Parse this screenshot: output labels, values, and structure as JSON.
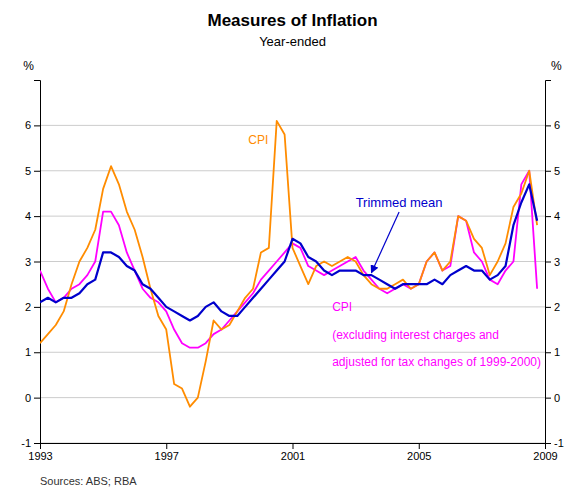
{
  "chart_data": {
    "type": "line",
    "title": "Measures of Inflation",
    "subtitle": "Year-ended",
    "y_label": "%",
    "y2_label": "%",
    "source": "Sources: ABS; RBA",
    "grid": true,
    "xlim": [
      1993.0,
      2009.0
    ],
    "xticks": [
      1993,
      1997,
      2001,
      2005,
      2009
    ],
    "ylim": [
      -1,
      7
    ],
    "yticks": [
      -1,
      0,
      1,
      2,
      3,
      4,
      5,
      6
    ],
    "y2lim": [
      -1,
      7
    ],
    "y2ticks": [
      -1,
      0,
      1,
      2,
      3,
      4,
      5,
      6
    ],
    "x": [
      1993.0,
      1993.25,
      1993.5,
      1993.75,
      1994.0,
      1994.25,
      1994.5,
      1994.75,
      1995.0,
      1995.25,
      1995.5,
      1995.75,
      1996.0,
      1996.25,
      1996.5,
      1996.75,
      1997.0,
      1997.25,
      1997.5,
      1997.75,
      1998.0,
      1998.25,
      1998.5,
      1998.75,
      1999.0,
      1999.25,
      1999.5,
      1999.75,
      2000.0,
      2000.25,
      2000.5,
      2000.75,
      2001.0,
      2001.25,
      2001.5,
      2001.75,
      2002.0,
      2002.25,
      2002.5,
      2002.75,
      2003.0,
      2003.25,
      2003.5,
      2003.75,
      2004.0,
      2004.25,
      2004.5,
      2004.75,
      2005.0,
      2005.25,
      2005.5,
      2005.75,
      2006.0,
      2006.25,
      2006.5,
      2006.75,
      2007.0,
      2007.25,
      2007.5,
      2007.75,
      2008.0,
      2008.25,
      2008.5,
      2008.75
    ],
    "series": [
      {
        "color": "#FF8C00",
        "values": [
          1.2,
          1.4,
          1.6,
          1.9,
          2.5,
          3.0,
          3.3,
          3.7,
          4.6,
          5.1,
          4.7,
          4.1,
          3.7,
          3.1,
          2.4,
          1.8,
          1.5,
          0.3,
          0.2,
          -0.2,
          0.0,
          0.8,
          1.7,
          1.5,
          1.6,
          1.9,
          2.2,
          2.4,
          3.2,
          3.3,
          6.1,
          5.8,
          3.3,
          2.9,
          2.5,
          2.9,
          3.0,
          2.9,
          3.0,
          3.1,
          3.0,
          2.7,
          2.5,
          2.4,
          2.4,
          2.5,
          2.6,
          2.4,
          2.5,
          3.0,
          3.2,
          2.8,
          3.0,
          4.0,
          3.9,
          3.5,
          3.3,
          2.7,
          3.0,
          3.4,
          4.2,
          4.5,
          5.0,
          3.8
        ]
      },
      {
        "color": "#0000CC",
        "values": [
          2.1,
          2.2,
          2.1,
          2.2,
          2.2,
          2.3,
          2.5,
          2.6,
          3.2,
          3.2,
          3.1,
          2.9,
          2.8,
          2.5,
          2.4,
          2.2,
          2.0,
          1.9,
          1.8,
          1.7,
          1.8,
          2.0,
          2.1,
          1.9,
          1.8,
          1.8,
          2.0,
          2.2,
          2.4,
          2.6,
          2.8,
          3.0,
          3.5,
          3.4,
          3.1,
          3.0,
          2.8,
          2.7,
          2.8,
          2.8,
          2.8,
          2.7,
          2.7,
          2.6,
          2.5,
          2.4,
          2.5,
          2.5,
          2.5,
          2.5,
          2.6,
          2.5,
          2.7,
          2.8,
          2.9,
          2.8,
          2.8,
          2.6,
          2.7,
          2.9,
          3.8,
          4.3,
          4.7,
          3.9
        ]
      },
      {
        "color": "#FF00FF",
        "values": [
          2.8,
          2.4,
          2.1,
          2.2,
          2.4,
          2.5,
          2.7,
          3.0,
          4.1,
          4.1,
          3.8,
          3.2,
          2.8,
          2.4,
          2.2,
          2.1,
          1.9,
          1.5,
          1.2,
          1.1,
          1.1,
          1.2,
          1.4,
          1.5,
          1.7,
          1.9,
          2.1,
          2.3,
          2.6,
          2.8,
          3.0,
          3.2,
          3.4,
          3.3,
          2.9,
          2.8,
          2.7,
          2.8,
          2.9,
          3.0,
          3.1,
          2.8,
          2.6,
          2.4,
          2.3,
          2.4,
          2.5,
          2.4,
          2.5,
          3.0,
          3.2,
          2.8,
          2.9,
          4.0,
          3.9,
          3.2,
          3.0,
          2.6,
          2.5,
          2.8,
          3.0,
          4.7,
          5.0,
          2.4
        ]
      }
    ],
    "annotations": [
      {
        "text": "CPI",
        "x": 1999.6,
        "y": 5.6,
        "color": "#FF8C00"
      },
      {
        "text": "Trimmed mean",
        "x": 2003.0,
        "y": 4.2,
        "arrow_x": 2003.5,
        "arrow_y": 2.75,
        "color": "#0000CC"
      },
      {
        "text": "CPI",
        "x": 2003.2,
        "y": 1.9,
        "color": "#FF00FF"
      },
      {
        "text": "(excluding interest charges and",
        "x": 2003.2,
        "y": 1.3,
        "color": "#FF00FF"
      },
      {
        "text": "adjusted for tax changes of 1999-2000)",
        "x": 2003.2,
        "y": 0.7,
        "color": "#FF00FF"
      }
    ]
  }
}
